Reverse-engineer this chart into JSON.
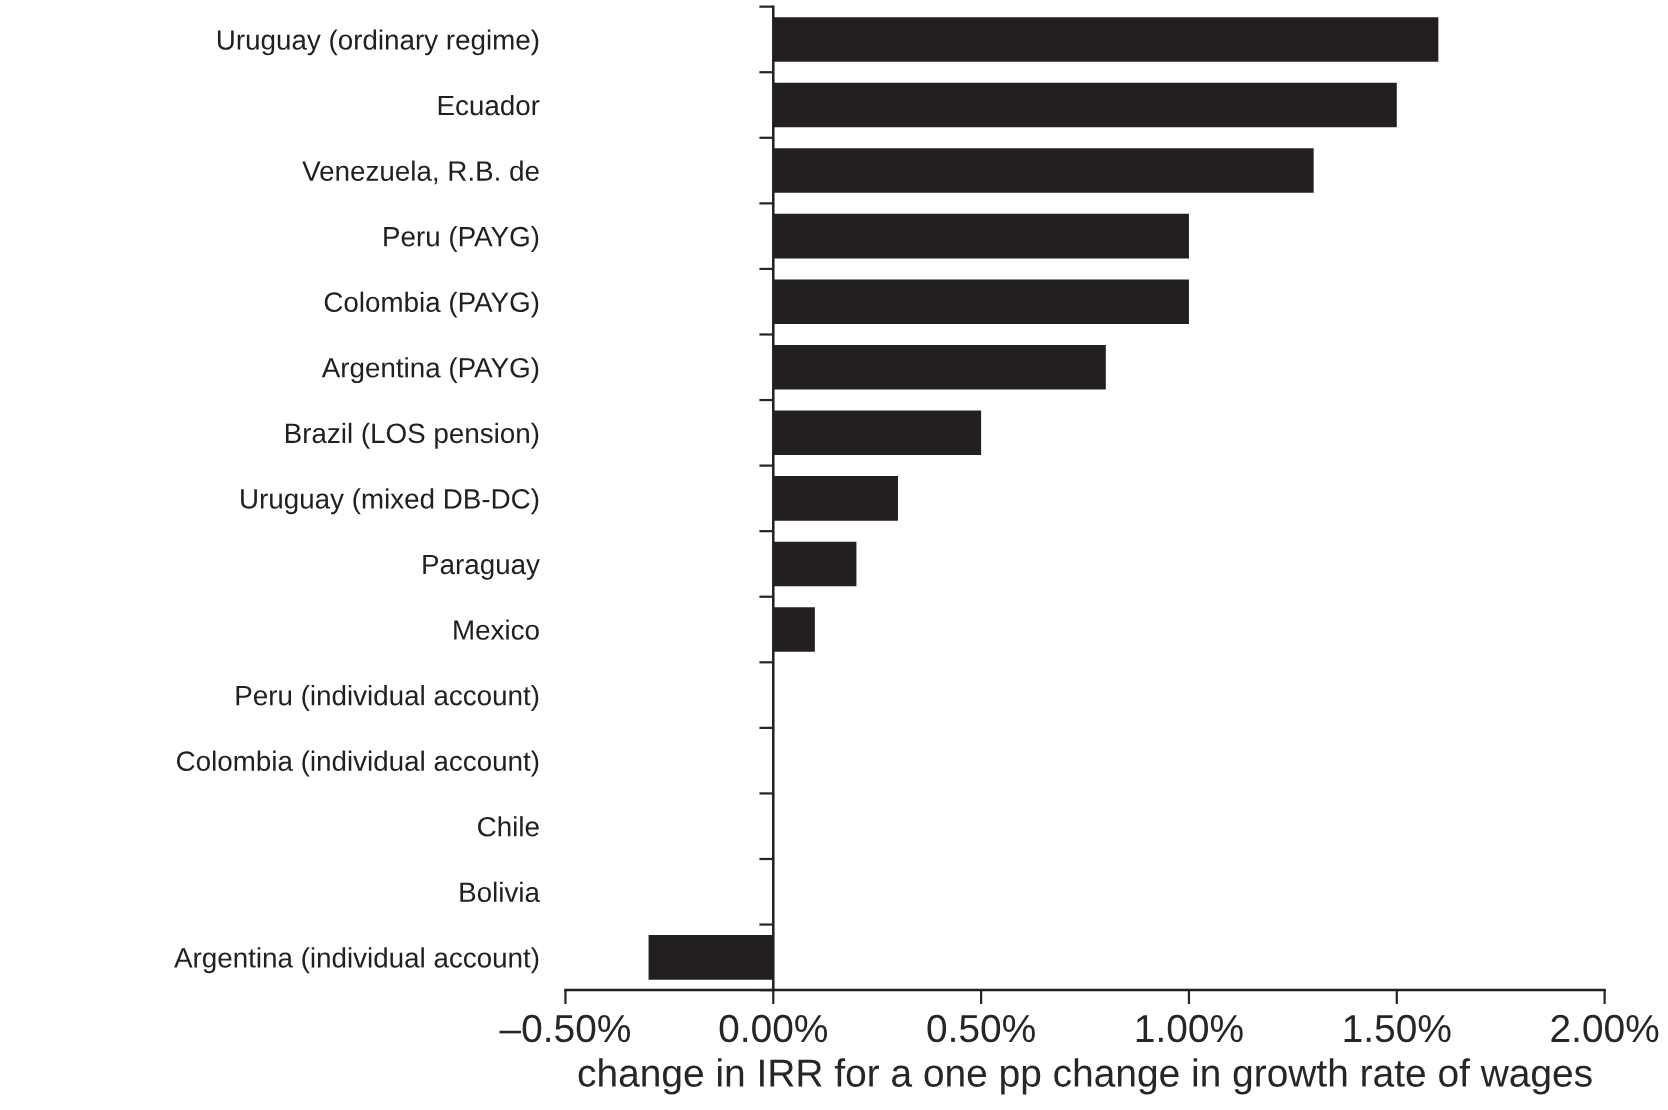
{
  "chart_data": {
    "type": "bar",
    "orientation": "horizontal",
    "xlabel": "change in IRR for a one pp change in growth rate of wages",
    "categories": [
      "Uruguay (ordinary regime)",
      "Ecuador",
      "Venezuela, R.B. de",
      "Peru (PAYG)",
      "Colombia (PAYG)",
      "Argentina (PAYG)",
      "Brazil (LOS pension)",
      "Uruguay (mixed DB-DC)",
      "Paraguay",
      "Mexico",
      "Peru (individual account)",
      "Colombia (individual account)",
      "Chile",
      "Bolivia",
      "Argentina (individual account)"
    ],
    "values": [
      1.6,
      1.5,
      1.3,
      1.0,
      1.0,
      0.8,
      0.5,
      0.3,
      0.2,
      0.1,
      0,
      0,
      0,
      0,
      -0.3
    ],
    "color": "#231f20",
    "xlim": [
      -0.5,
      2.0
    ],
    "xticks": [
      {
        "value": -0.5,
        "label": "–0.50%"
      },
      {
        "value": 0,
        "label": "0.00%"
      },
      {
        "value": 0.5,
        "label": "0.50%"
      },
      {
        "value": 1.0,
        "label": "1.00%"
      },
      {
        "value": 1.5,
        "label": "1.50%"
      },
      {
        "value": 2.0,
        "label": "2.00%"
      }
    ],
    "legend": false
  }
}
